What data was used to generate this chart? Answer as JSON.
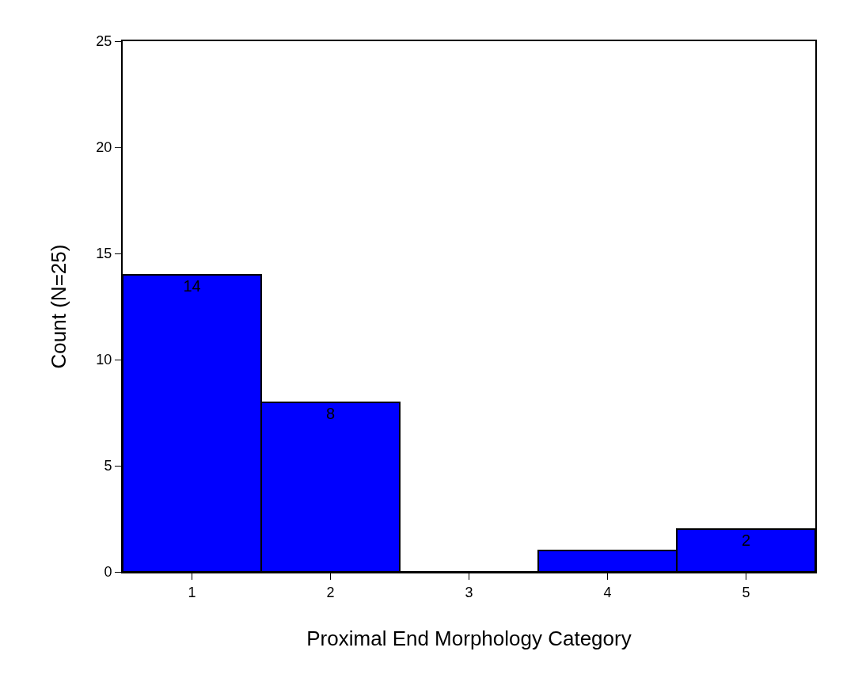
{
  "chart_data": {
    "type": "bar",
    "xlabel": "Proximal End Morphology Category",
    "ylabel": "Count (N=25)",
    "categories": [
      "1",
      "2",
      "3",
      "4",
      "5"
    ],
    "values": [
      14,
      8,
      0,
      1,
      2
    ],
    "value_labels": [
      "14",
      "8",
      null,
      null,
      "2"
    ],
    "color": "#0000ff",
    "ylim": [
      0,
      25
    ],
    "yticks": [
      0,
      5,
      10,
      15,
      20,
      25
    ]
  }
}
